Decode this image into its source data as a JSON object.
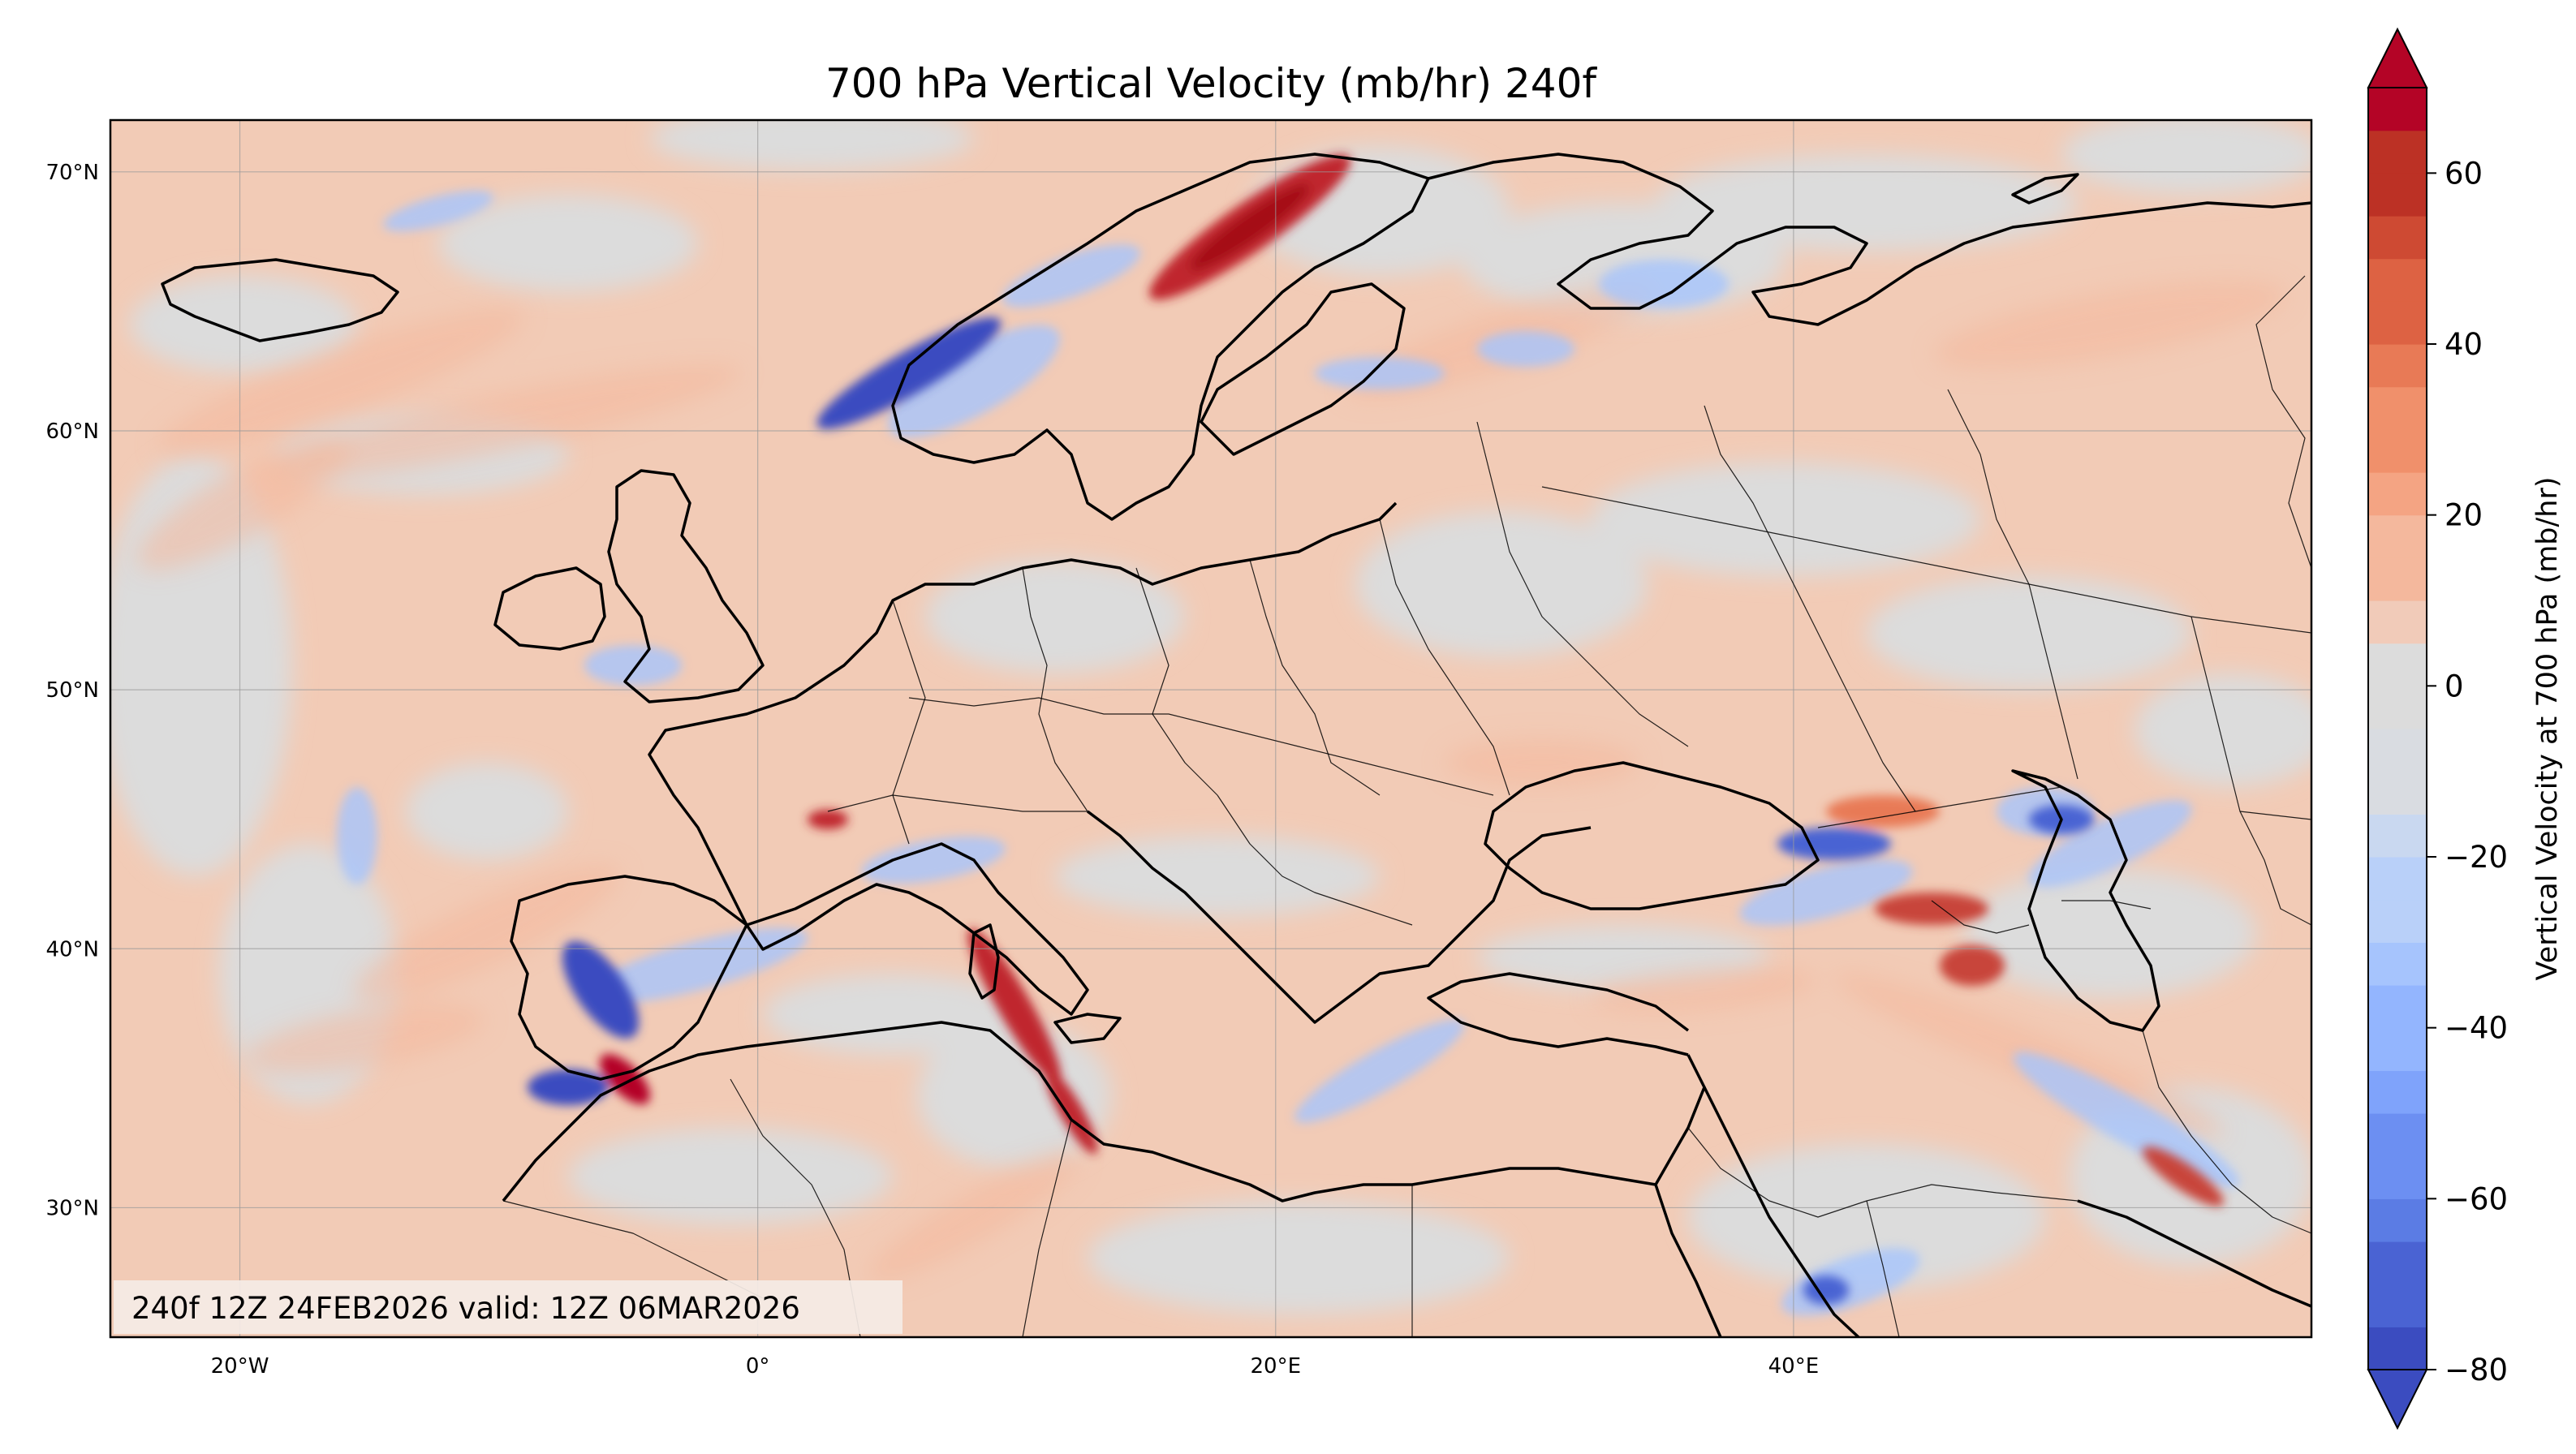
{
  "title": "700 hPa Vertical Velocity (mb/hr) 240f",
  "valid_text": "240f 12Z 24FEB2026 valid: 12Z 06MAR2026",
  "colorbar": {
    "label": "Vertical Velocity at 700 hPa (mb/hr)",
    "levels": [
      -80,
      -75,
      -70,
      -65,
      -60,
      -55,
      -50,
      -45,
      -40,
      -35,
      -30,
      -25,
      -20,
      -15,
      -10,
      -5,
      0,
      5,
      10,
      15,
      20,
      25,
      30,
      35,
      40,
      45,
      50,
      55,
      60,
      65,
      70
    ],
    "colors": [
      "#3b4cc0",
      "#4a63d3",
      "#5b7ce4",
      "#6c8ff2",
      "#7fa3fb",
      "#93b5fe",
      "#a6c4fd",
      "#b9d0f9",
      "#c9d8f0",
      "#d9dce1",
      "#dcdcdc",
      "#f1cbb9",
      "#f4b89d",
      "#f4a483",
      "#f0906b",
      "#e87a56",
      "#dd6243",
      "#ce4a33",
      "#bc3125",
      "#b40426"
    ],
    "tick_values": [
      -80,
      -60,
      -40,
      -20,
      0,
      20,
      40,
      60
    ],
    "tick_labels": [
      "−80",
      "−60",
      "−40",
      "−20",
      "0",
      "20",
      "40",
      "60"
    ],
    "extend": "both"
  },
  "map": {
    "lon_range": [
      -25,
      60
    ],
    "lat_range": [
      25,
      72
    ],
    "lon_ticks": [
      -20,
      0,
      20,
      40
    ],
    "lon_tick_labels": [
      "20°W",
      "0°",
      "20°E",
      "40°E"
    ],
    "lat_ticks": [
      30,
      40,
      50,
      60,
      70
    ],
    "lat_tick_labels": [
      "30°N",
      "40°N",
      "50°N",
      "60°N",
      "70°N"
    ],
    "gridlines": true,
    "background_color": "#f2cbb6",
    "neutral_color": "#dcdcdc"
  }
}
